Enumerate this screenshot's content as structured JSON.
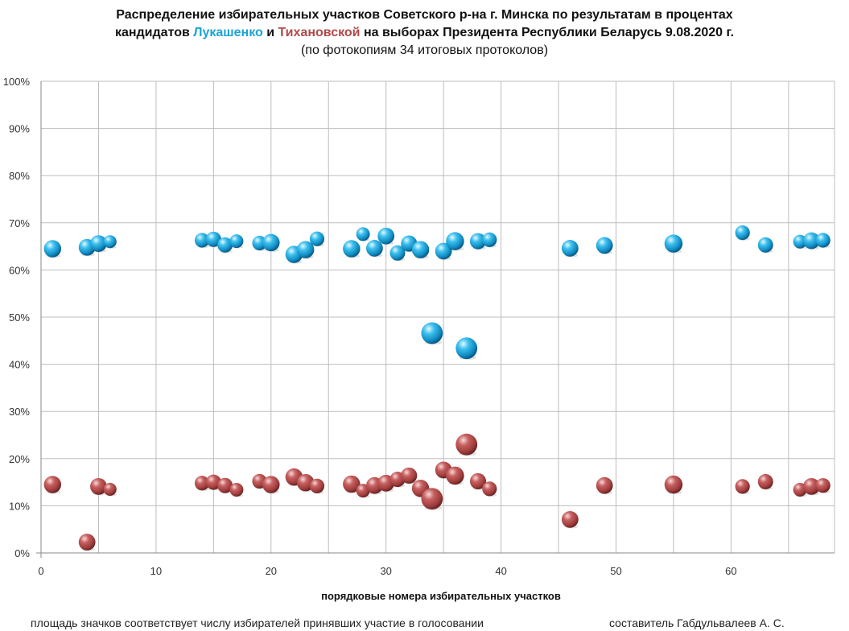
{
  "title": {
    "line1": "Распределение избирательных участков Советского р-на г. Минска по результатам в процентах",
    "line2_prefix": "кандидатов",
    "candidate1": "Лукашенко",
    "conj": "и",
    "candidate2": "Тихановской",
    "line2_suffix": "на выборах Президента Республики Беларусь 9.08.2020 г.",
    "line3": "(по фотокопиям 34 итоговых протоколов)"
  },
  "colors": {
    "lukashenko": "#1ba3d6",
    "tikhanovskaya": "#b04a4a",
    "grid": "#bdbdbd"
  },
  "chart_data": {
    "type": "scatter",
    "xlabel": "порядковые номера избирательных участков",
    "ylabel": "",
    "xlim": [
      0,
      69
    ],
    "ylim": [
      0,
      100
    ],
    "xticks": [
      0,
      10,
      20,
      30,
      40,
      50,
      60
    ],
    "yticks": [
      0,
      10,
      20,
      30,
      40,
      50,
      60,
      70,
      80,
      90,
      100
    ],
    "ytick_labels": [
      "0%",
      "10%",
      "20%",
      "30%",
      "40%",
      "50%",
      "60%",
      "70%",
      "80%",
      "90%",
      "100%"
    ],
    "grid": true,
    "series": [
      {
        "name": "Лукашенко",
        "color_key": "lukashenko",
        "points": [
          {
            "x": 1,
            "y": 64.5,
            "s": 3.2
          },
          {
            "x": 4,
            "y": 64.8,
            "s": 3.0
          },
          {
            "x": 5,
            "y": 65.6,
            "s": 3.0
          },
          {
            "x": 6,
            "y": 66.0,
            "s": 1.8
          },
          {
            "x": 14,
            "y": 66.3,
            "s": 2.3
          },
          {
            "x": 15,
            "y": 66.5,
            "s": 2.5
          },
          {
            "x": 16,
            "y": 65.3,
            "s": 2.5
          },
          {
            "x": 17,
            "y": 66.1,
            "s": 2.0
          },
          {
            "x": 19,
            "y": 65.7,
            "s": 2.3
          },
          {
            "x": 20,
            "y": 65.8,
            "s": 3.2
          },
          {
            "x": 22,
            "y": 63.3,
            "s": 3.2
          },
          {
            "x": 23,
            "y": 64.3,
            "s": 3.2
          },
          {
            "x": 24,
            "y": 66.6,
            "s": 2.3
          },
          {
            "x": 27,
            "y": 64.5,
            "s": 3.2
          },
          {
            "x": 28,
            "y": 67.6,
            "s": 2.0
          },
          {
            "x": 29,
            "y": 64.6,
            "s": 3.0
          },
          {
            "x": 30,
            "y": 67.2,
            "s": 3.0
          },
          {
            "x": 31,
            "y": 63.6,
            "s": 2.5
          },
          {
            "x": 32,
            "y": 65.6,
            "s": 2.8
          },
          {
            "x": 33,
            "y": 64.3,
            "s": 3.2
          },
          {
            "x": 34,
            "y": 46.6,
            "s": 5.0
          },
          {
            "x": 35,
            "y": 64.0,
            "s": 3.0
          },
          {
            "x": 36,
            "y": 66.1,
            "s": 3.5
          },
          {
            "x": 37,
            "y": 43.4,
            "s": 5.0
          },
          {
            "x": 38,
            "y": 66.1,
            "s": 2.8
          },
          {
            "x": 39,
            "y": 66.4,
            "s": 2.3
          },
          {
            "x": 46,
            "y": 64.6,
            "s": 3.0
          },
          {
            "x": 49,
            "y": 65.2,
            "s": 3.0
          },
          {
            "x": 55,
            "y": 65.6,
            "s": 3.5
          },
          {
            "x": 61,
            "y": 67.9,
            "s": 2.3
          },
          {
            "x": 63,
            "y": 65.3,
            "s": 2.5
          },
          {
            "x": 66,
            "y": 66.0,
            "s": 2.0
          },
          {
            "x": 67,
            "y": 66.2,
            "s": 3.0
          },
          {
            "x": 68,
            "y": 66.3,
            "s": 2.3
          }
        ]
      },
      {
        "name": "Тихановская",
        "color_key": "tikhanovskaya",
        "points": [
          {
            "x": 1,
            "y": 14.5,
            "s": 3.2
          },
          {
            "x": 4,
            "y": 2.3,
            "s": 3.0
          },
          {
            "x": 5,
            "y": 14.1,
            "s": 3.0
          },
          {
            "x": 6,
            "y": 13.5,
            "s": 1.8
          },
          {
            "x": 14,
            "y": 14.8,
            "s": 2.3
          },
          {
            "x": 15,
            "y": 15.0,
            "s": 2.5
          },
          {
            "x": 16,
            "y": 14.3,
            "s": 2.5
          },
          {
            "x": 17,
            "y": 13.4,
            "s": 2.0
          },
          {
            "x": 19,
            "y": 15.2,
            "s": 2.3
          },
          {
            "x": 20,
            "y": 14.5,
            "s": 3.2
          },
          {
            "x": 22,
            "y": 16.1,
            "s": 3.2
          },
          {
            "x": 23,
            "y": 14.9,
            "s": 3.2
          },
          {
            "x": 24,
            "y": 14.2,
            "s": 2.3
          },
          {
            "x": 27,
            "y": 14.6,
            "s": 3.2
          },
          {
            "x": 28,
            "y": 13.2,
            "s": 2.0
          },
          {
            "x": 29,
            "y": 14.3,
            "s": 3.0
          },
          {
            "x": 30,
            "y": 14.8,
            "s": 3.0
          },
          {
            "x": 31,
            "y": 15.6,
            "s": 2.5
          },
          {
            "x": 32,
            "y": 16.4,
            "s": 2.8
          },
          {
            "x": 33,
            "y": 13.7,
            "s": 3.2
          },
          {
            "x": 34,
            "y": 11.5,
            "s": 5.0
          },
          {
            "x": 35,
            "y": 17.6,
            "s": 3.0
          },
          {
            "x": 36,
            "y": 16.4,
            "s": 3.5
          },
          {
            "x": 37,
            "y": 23.0,
            "s": 5.0
          },
          {
            "x": 38,
            "y": 15.2,
            "s": 2.8
          },
          {
            "x": 39,
            "y": 13.6,
            "s": 2.3
          },
          {
            "x": 46,
            "y": 7.1,
            "s": 3.0
          },
          {
            "x": 49,
            "y": 14.3,
            "s": 3.0
          },
          {
            "x": 55,
            "y": 14.5,
            "s": 3.5
          },
          {
            "x": 61,
            "y": 14.1,
            "s": 2.3
          },
          {
            "x": 63,
            "y": 15.1,
            "s": 2.5
          },
          {
            "x": 66,
            "y": 13.4,
            "s": 2.0
          },
          {
            "x": 67,
            "y": 14.1,
            "s": 3.0
          },
          {
            "x": 68,
            "y": 14.3,
            "s": 2.3
          }
        ]
      }
    ]
  },
  "footnote": {
    "left": "площадь значков соответствует числу избирателей принявших участие в голосовании",
    "right": "составитель Габдульвалеев А. С."
  }
}
